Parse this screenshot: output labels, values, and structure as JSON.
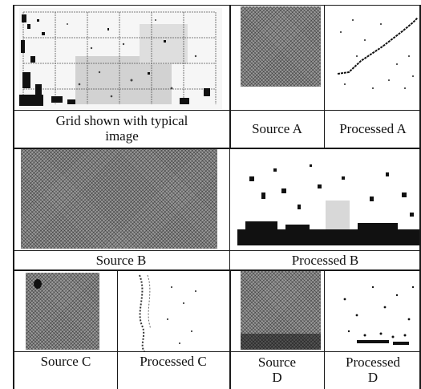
{
  "captions": {
    "grid": "Grid shown with typical image",
    "source_a": "Source A",
    "processed_a": "Processed A",
    "source_b": "Source B",
    "processed_b": "Processed B",
    "source_c": "Source C",
    "processed_c": "Processed C",
    "source_d": "Source D",
    "processed_d": "Processed D"
  }
}
